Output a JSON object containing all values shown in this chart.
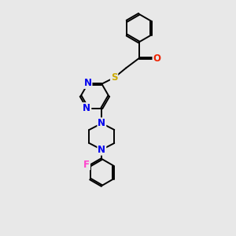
{
  "background_color": "#e8e8e8",
  "bond_color": "#000000",
  "bond_width": 1.4,
  "atom_colors": {
    "N": "#0000ee",
    "O": "#ee2200",
    "S": "#ccaa00",
    "F": "#ff44cc",
    "C": "#000000"
  },
  "font_size_atom": 8.5
}
